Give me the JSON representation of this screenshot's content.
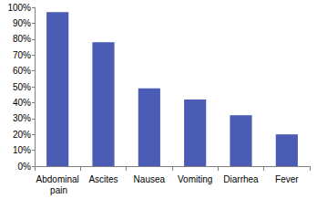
{
  "chart_data": {
    "type": "bar",
    "categories": [
      "Abdominal pain",
      "Ascites",
      "Nausea",
      "Vomiting",
      "Diarrhea",
      "Fever"
    ],
    "values": [
      97,
      78,
      49,
      42,
      32,
      20
    ],
    "color": "#4a5cb4",
    "ylim": [
      0,
      100
    ],
    "yticks": [
      {
        "value": 0,
        "label": "0%"
      },
      {
        "value": 10,
        "label": "10%"
      },
      {
        "value": 20,
        "label": "20%"
      },
      {
        "value": 30,
        "label": "30%"
      },
      {
        "value": 40,
        "label": "40%"
      },
      {
        "value": 50,
        "label": "50%"
      },
      {
        "value": 60,
        "label": "60%"
      },
      {
        "value": 70,
        "label": "70%"
      },
      {
        "value": 80,
        "label": "80%"
      },
      {
        "value": 90,
        "label": "90%"
      },
      {
        "value": 100,
        "label": "100%"
      }
    ],
    "grid": false
  }
}
